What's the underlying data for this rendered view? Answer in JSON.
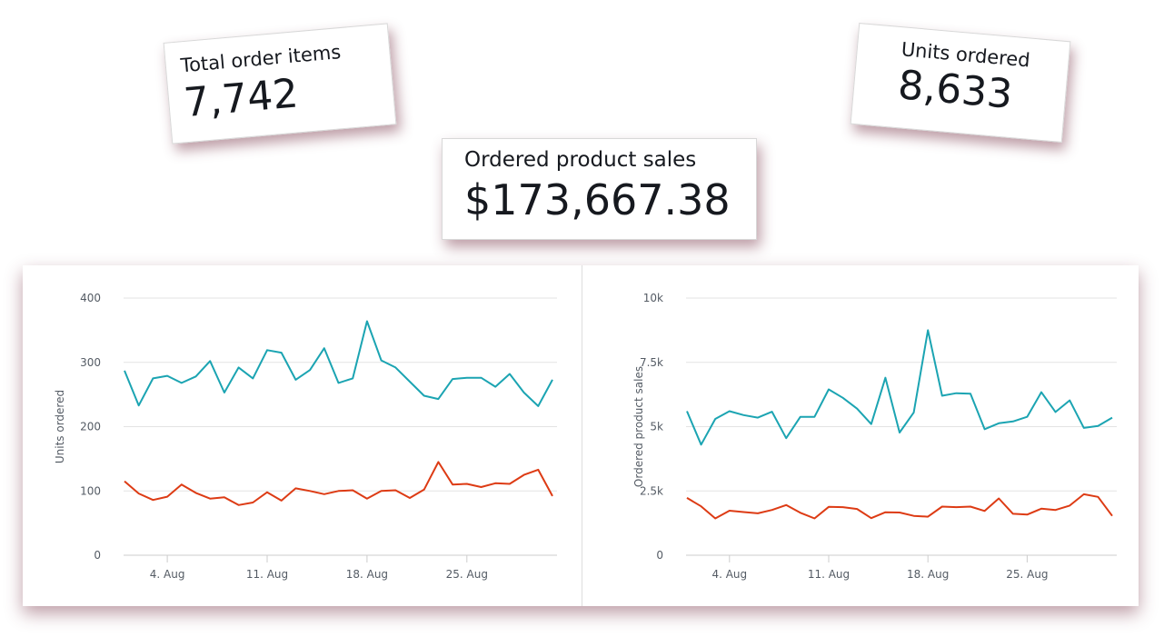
{
  "kpis": {
    "total_order_items": {
      "label": "Total order items",
      "value": "7,742"
    },
    "ordered_product_sales": {
      "label": "Ordered product sales",
      "value": "$173,667.38"
    },
    "units_ordered": {
      "label": "Units ordered",
      "value": "8,633"
    }
  },
  "colors": {
    "series_1": "#1ba4b2",
    "series_2": "#dd3b14",
    "grid": "#e3e3e3"
  },
  "chart_data": [
    {
      "type": "line",
      "ylabel": "Units ordered",
      "ylim": [
        0,
        400
      ],
      "yticks": [
        0,
        100,
        200,
        300,
        400
      ],
      "ytick_labels": [
        "0",
        "100",
        "200",
        "300",
        "400"
      ],
      "x": [
        "2023-08-01",
        "2023-08-02",
        "2023-08-03",
        "2023-08-04",
        "2023-08-05",
        "2023-08-06",
        "2023-08-07",
        "2023-08-08",
        "2023-08-09",
        "2023-08-10",
        "2023-08-11",
        "2023-08-12",
        "2023-08-13",
        "2023-08-14",
        "2023-08-15",
        "2023-08-16",
        "2023-08-17",
        "2023-08-18",
        "2023-08-19",
        "2023-08-20",
        "2023-08-21",
        "2023-08-22",
        "2023-08-23",
        "2023-08-24",
        "2023-08-25",
        "2023-08-26",
        "2023-08-27",
        "2023-08-28",
        "2023-08-29",
        "2023-08-30",
        "2023-08-31"
      ],
      "xticks": [
        "2023-08-04",
        "2023-08-11",
        "2023-08-18",
        "2023-08-25"
      ],
      "xtick_labels": [
        "4. Aug",
        "11. Aug",
        "18. Aug",
        "25. Aug"
      ],
      "series": [
        {
          "values": [
            287,
            233,
            275,
            279,
            268,
            278,
            302,
            253,
            292,
            275,
            319,
            315,
            273,
            288,
            322,
            268,
            275,
            364,
            303,
            292,
            270,
            248,
            243,
            274,
            276,
            276,
            262,
            282,
            253,
            232,
            273
          ]
        },
        {
          "values": [
            115,
            96,
            86,
            91,
            110,
            97,
            88,
            90,
            78,
            82,
            98,
            85,
            104,
            100,
            95,
            100,
            101,
            88,
            100,
            101,
            89,
            102,
            145,
            110,
            111,
            106,
            112,
            111,
            125,
            133,
            92
          ]
        }
      ]
    },
    {
      "type": "line",
      "ylabel": "Ordered product sales",
      "ylim": [
        0,
        10000
      ],
      "yticks": [
        0,
        2500,
        5000,
        7500,
        10000
      ],
      "ytick_labels": [
        "0",
        "2.5k",
        "5k",
        "7.5k",
        "10k"
      ],
      "x": [
        "2023-08-01",
        "2023-08-02",
        "2023-08-03",
        "2023-08-04",
        "2023-08-05",
        "2023-08-06",
        "2023-08-07",
        "2023-08-08",
        "2023-08-09",
        "2023-08-10",
        "2023-08-11",
        "2023-08-12",
        "2023-08-13",
        "2023-08-14",
        "2023-08-15",
        "2023-08-16",
        "2023-08-17",
        "2023-08-18",
        "2023-08-19",
        "2023-08-20",
        "2023-08-21",
        "2023-08-22",
        "2023-08-23",
        "2023-08-24",
        "2023-08-25",
        "2023-08-26",
        "2023-08-27",
        "2023-08-28",
        "2023-08-29",
        "2023-08-30",
        "2023-08-31"
      ],
      "xticks": [
        "2023-08-04",
        "2023-08-11",
        "2023-08-18",
        "2023-08-25"
      ],
      "xtick_labels": [
        "4. Aug",
        "11. Aug",
        "18. Aug",
        "25. Aug"
      ],
      "series": [
        {
          "values": [
            5600,
            4300,
            5300,
            5600,
            5450,
            5350,
            5580,
            4550,
            5380,
            5380,
            6450,
            6120,
            5700,
            5100,
            6900,
            4770,
            5550,
            8750,
            6200,
            6300,
            6280,
            4900,
            5130,
            5200,
            5380,
            6340,
            5570,
            6020,
            4950,
            5030,
            5350
          ]
        },
        {
          "values": [
            2230,
            1900,
            1430,
            1730,
            1680,
            1630,
            1760,
            1950,
            1650,
            1430,
            1880,
            1870,
            1800,
            1440,
            1670,
            1660,
            1530,
            1500,
            1890,
            1870,
            1890,
            1720,
            2210,
            1610,
            1580,
            1810,
            1760,
            1930,
            2370,
            2270,
            1530
          ]
        }
      ]
    }
  ]
}
